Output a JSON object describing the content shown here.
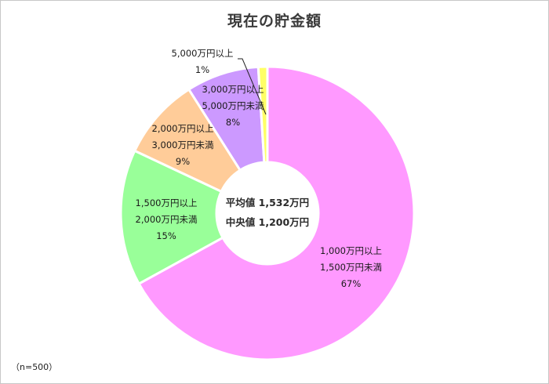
{
  "chart_data": {
    "type": "pie",
    "subtype": "donut",
    "title": "現在の貯金額",
    "start_angle": "12 o'clock, clockwise",
    "slices": [
      {
        "label_line1": "1,000万円以上",
        "label_line2": "1,500万円未満",
        "value": 67,
        "pct_label": "67%",
        "color": "#ff99ff"
      },
      {
        "label_line1": "1,500万円以上",
        "label_line2": "2,000万円未満",
        "value": 15,
        "pct_label": "15%",
        "color": "#99ff99"
      },
      {
        "label_line1": "2,000万円以上",
        "label_line2": "3,000万円未満",
        "value": 9,
        "pct_label": "9%",
        "color": "#ffcc99"
      },
      {
        "label_line1": "3,000万円以上",
        "label_line2": "5,000万円未満",
        "value": 8,
        "pct_label": "8%",
        "color": "#cc99ff"
      },
      {
        "label_line1": "5,000万円以上",
        "label_line2": "",
        "value": 1,
        "pct_label": "1%",
        "color": "#ffff66"
      }
    ],
    "center_text": {
      "mean_label": "平均値 1,532万円",
      "median_label": "中央値 1,200万円"
    },
    "note": "（n=500）",
    "legend": "none (data labels on slices)"
  }
}
